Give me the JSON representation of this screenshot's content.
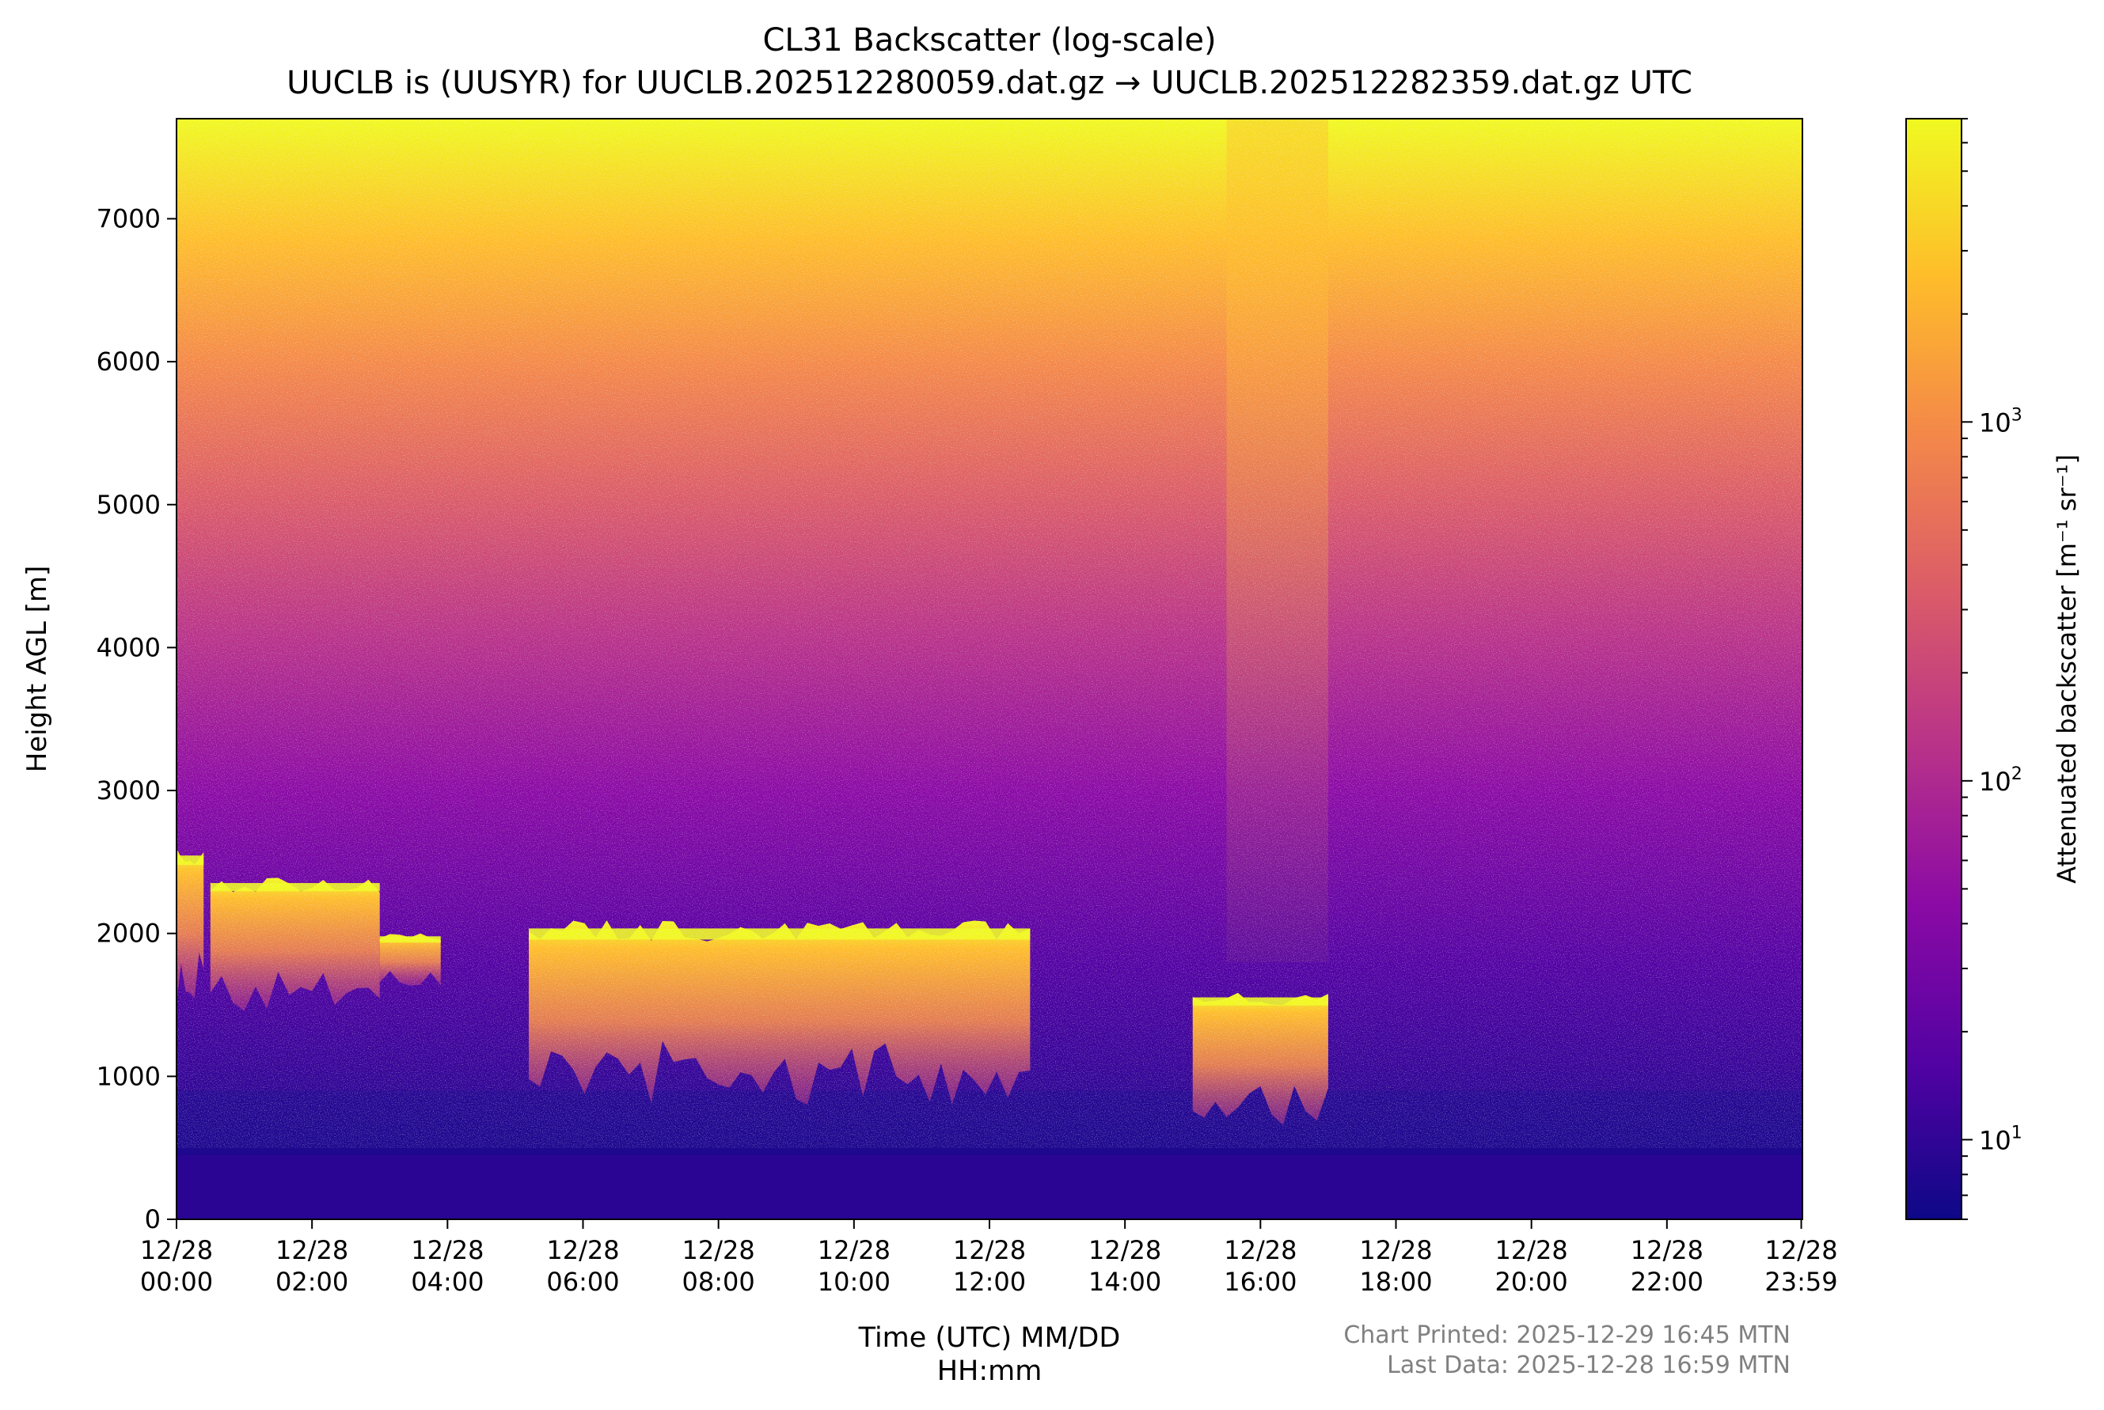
{
  "chart_data": {
    "type": "heatmap",
    "title": "CL31 Backscatter (log-scale)",
    "subtitle": "UUCLB is (UUSYR) for UUCLB.202512280059.dat.gz → UUCLB.202512282359.dat.gz UTC",
    "xlabel_line1": "Time (UTC) MM/DD",
    "xlabel_line2": "HH:mm",
    "ylabel": "Height AGL [m]",
    "colorbar_label": "Attenuated backscatter [m⁻¹ sr⁻¹]",
    "colormap": "plasma",
    "colormap_stops": [
      "#0d0887",
      "#5302a3",
      "#8b0aa5",
      "#b83289",
      "#db5c68",
      "#f48849",
      "#febd2a",
      "#f0f921"
    ],
    "color_scale": "log",
    "color_range": [
      6,
      7000
    ],
    "colorbar_ticks": [
      {
        "value": 10,
        "base": "10",
        "exp": "1"
      },
      {
        "value": 100,
        "base": "10",
        "exp": "2"
      },
      {
        "value": 1000,
        "base": "10",
        "exp": "3"
      }
    ],
    "x_range_hours": [
      0,
      24
    ],
    "x_ticks": [
      {
        "hour": 0,
        "date": "12/28",
        "time": "00:00"
      },
      {
        "hour": 2,
        "date": "12/28",
        "time": "02:00"
      },
      {
        "hour": 4,
        "date": "12/28",
        "time": "04:00"
      },
      {
        "hour": 6,
        "date": "12/28",
        "time": "06:00"
      },
      {
        "hour": 8,
        "date": "12/28",
        "time": "08:00"
      },
      {
        "hour": 10,
        "date": "12/28",
        "time": "10:00"
      },
      {
        "hour": 12,
        "date": "12/28",
        "time": "12:00"
      },
      {
        "hour": 14,
        "date": "12/28",
        "time": "14:00"
      },
      {
        "hour": 16,
        "date": "12/28",
        "time": "16:00"
      },
      {
        "hour": 18,
        "date": "12/28",
        "time": "18:00"
      },
      {
        "hour": 20,
        "date": "12/28",
        "time": "20:00"
      },
      {
        "hour": 22,
        "date": "12/28",
        "time": "22:00"
      },
      {
        "hour": 23.983,
        "date": "12/28",
        "time": "23:59"
      }
    ],
    "ylim": [
      0,
      7700
    ],
    "y_ticks": [
      0,
      1000,
      2000,
      3000,
      4000,
      5000,
      6000,
      7000
    ],
    "grid": false,
    "cloud_layers": [
      {
        "start_hour": 0.0,
        "end_hour": 0.4,
        "base_m": 1500,
        "top_m": 2600
      },
      {
        "start_hour": 0.5,
        "end_hour": 3.0,
        "base_m": 1450,
        "top_m": 2400
      },
      {
        "start_hour": 3.0,
        "end_hour": 3.9,
        "base_m": 1600,
        "top_m": 2000
      },
      {
        "start_hour": 5.2,
        "end_hour": 12.6,
        "base_m": 800,
        "top_m": 2100
      },
      {
        "start_hour": 15.0,
        "end_hour": 17.0,
        "base_m": 650,
        "top_m": 1600
      }
    ],
    "noise_band": {
      "start_hour": 15.5,
      "end_hour": 17.0,
      "bottom_m": 1800,
      "top_m": 7700
    }
  },
  "footer": {
    "printed": "Chart Printed: 2025-12-29 16:45 MTN",
    "last_data": "Last Data: 2025-12-28 16:59 MTN"
  }
}
